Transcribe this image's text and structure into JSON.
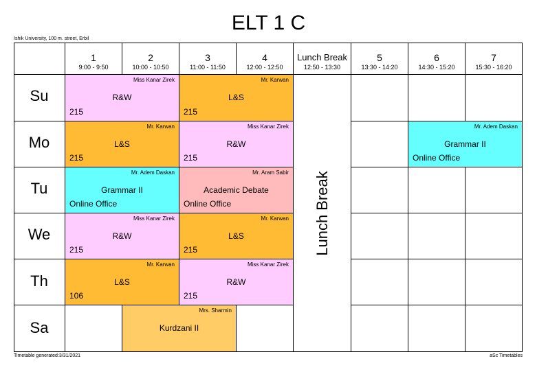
{
  "title": "ELT 1 C",
  "institution": "Ishik University, 100 m. street, Erbil",
  "footer": {
    "generated": "Timetable generated:3/31/2021",
    "brand": "aSc Timetables"
  },
  "colors": {
    "rw": "#FFCCFF",
    "ls": "#FFBB33",
    "grammar": "#66FFFF",
    "debate": "#FFBBBB",
    "kurdzani": "#FFCC66"
  },
  "periods": [
    {
      "label": "1",
      "time": "9:00 - 9:50"
    },
    {
      "label": "2",
      "time": "10:00 - 10:50"
    },
    {
      "label": "3",
      "time": "11:00 - 11:50"
    },
    {
      "label": "4",
      "time": "12:00 - 12:50"
    },
    {
      "label": "Lunch Break",
      "time": "12:50 - 13:30"
    },
    {
      "label": "5",
      "time": "13:30 - 14:20"
    },
    {
      "label": "6",
      "time": "14:30 - 15:20"
    },
    {
      "label": "7",
      "time": "15:30 - 16:20"
    }
  ],
  "lunch_label": "Lunch Break",
  "days": [
    "Su",
    "Mo",
    "Tu",
    "We",
    "Th",
    "Sa"
  ],
  "lessons": [
    {
      "day": "Su",
      "periods": "1-2",
      "teacher": "Miss Kanar Zirek",
      "subject": "R&W",
      "room": "215"
    },
    {
      "day": "Su",
      "periods": "3-4",
      "teacher": "Mr. Karwan",
      "subject": "L&S",
      "room": "215"
    },
    {
      "day": "Mo",
      "periods": "1-2",
      "teacher": "Mr. Karwan",
      "subject": "L&S",
      "room": "215"
    },
    {
      "day": "Mo",
      "periods": "3-4",
      "teacher": "Miss Kanar Zirek",
      "subject": "R&W",
      "room": "215"
    },
    {
      "day": "Mo",
      "periods": "6-7",
      "teacher": "Mr. Adem Daskan",
      "subject": "Grammar II",
      "room": "Online Office"
    },
    {
      "day": "Tu",
      "periods": "1-2",
      "teacher": "Mr. Adem Daskan",
      "subject": "Grammar II",
      "room": "Online Office"
    },
    {
      "day": "Tu",
      "periods": "3-4",
      "teacher": "Mr. Aram Sabir",
      "subject": "Academic Debate",
      "room": "Online Office"
    },
    {
      "day": "We",
      "periods": "1-2",
      "teacher": "Miss Kanar Zirek",
      "subject": "R&W",
      "room": "215"
    },
    {
      "day": "We",
      "periods": "3-4",
      "teacher": "Mr. Karwan",
      "subject": "L&S",
      "room": "215"
    },
    {
      "day": "Th",
      "periods": "1-2",
      "teacher": "Mr. Karwan",
      "subject": "L&S",
      "room": "106"
    },
    {
      "day": "Th",
      "periods": "3-4",
      "teacher": "Miss Kanar Zirek",
      "subject": "R&W",
      "room": "215"
    },
    {
      "day": "Sa",
      "periods": "2-3",
      "teacher": "Mrs. Sharmin",
      "subject": "Kurdzani II",
      "room": ""
    }
  ]
}
